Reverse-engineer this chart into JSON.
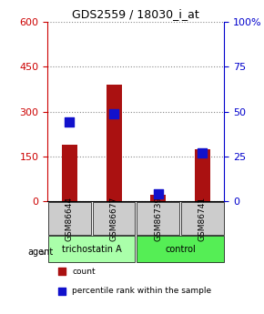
{
  "title": "GDS2559 / 18030_i_at",
  "samples": [
    "GSM86644",
    "GSM86677",
    "GSM86739",
    "GSM86741"
  ],
  "counts": [
    190,
    390,
    20,
    175
  ],
  "percentiles": [
    44,
    49,
    4,
    27
  ],
  "ylim_left": [
    0,
    600
  ],
  "ylim_right": [
    0,
    100
  ],
  "yticks_left": [
    0,
    150,
    300,
    450,
    600
  ],
  "yticks_right": [
    0,
    25,
    50,
    75,
    100
  ],
  "bar_color": "#aa1111",
  "dot_color": "#1111cc",
  "groups": [
    {
      "label": "trichostatin A",
      "samples": [
        0,
        1
      ],
      "color": "#aaffaa"
    },
    {
      "label": "control",
      "samples": [
        2,
        3
      ],
      "color": "#55ee55"
    }
  ],
  "agent_label": "agent",
  "legend": [
    {
      "label": "count",
      "color": "#aa1111"
    },
    {
      "label": "percentile rank within the sample",
      "color": "#1111cc"
    }
  ],
  "grid_color": "#888888",
  "sample_box_color": "#cccccc",
  "sample_text_color": "#000000",
  "title_color": "#000000",
  "left_axis_color": "#cc0000",
  "right_axis_color": "#0000cc"
}
